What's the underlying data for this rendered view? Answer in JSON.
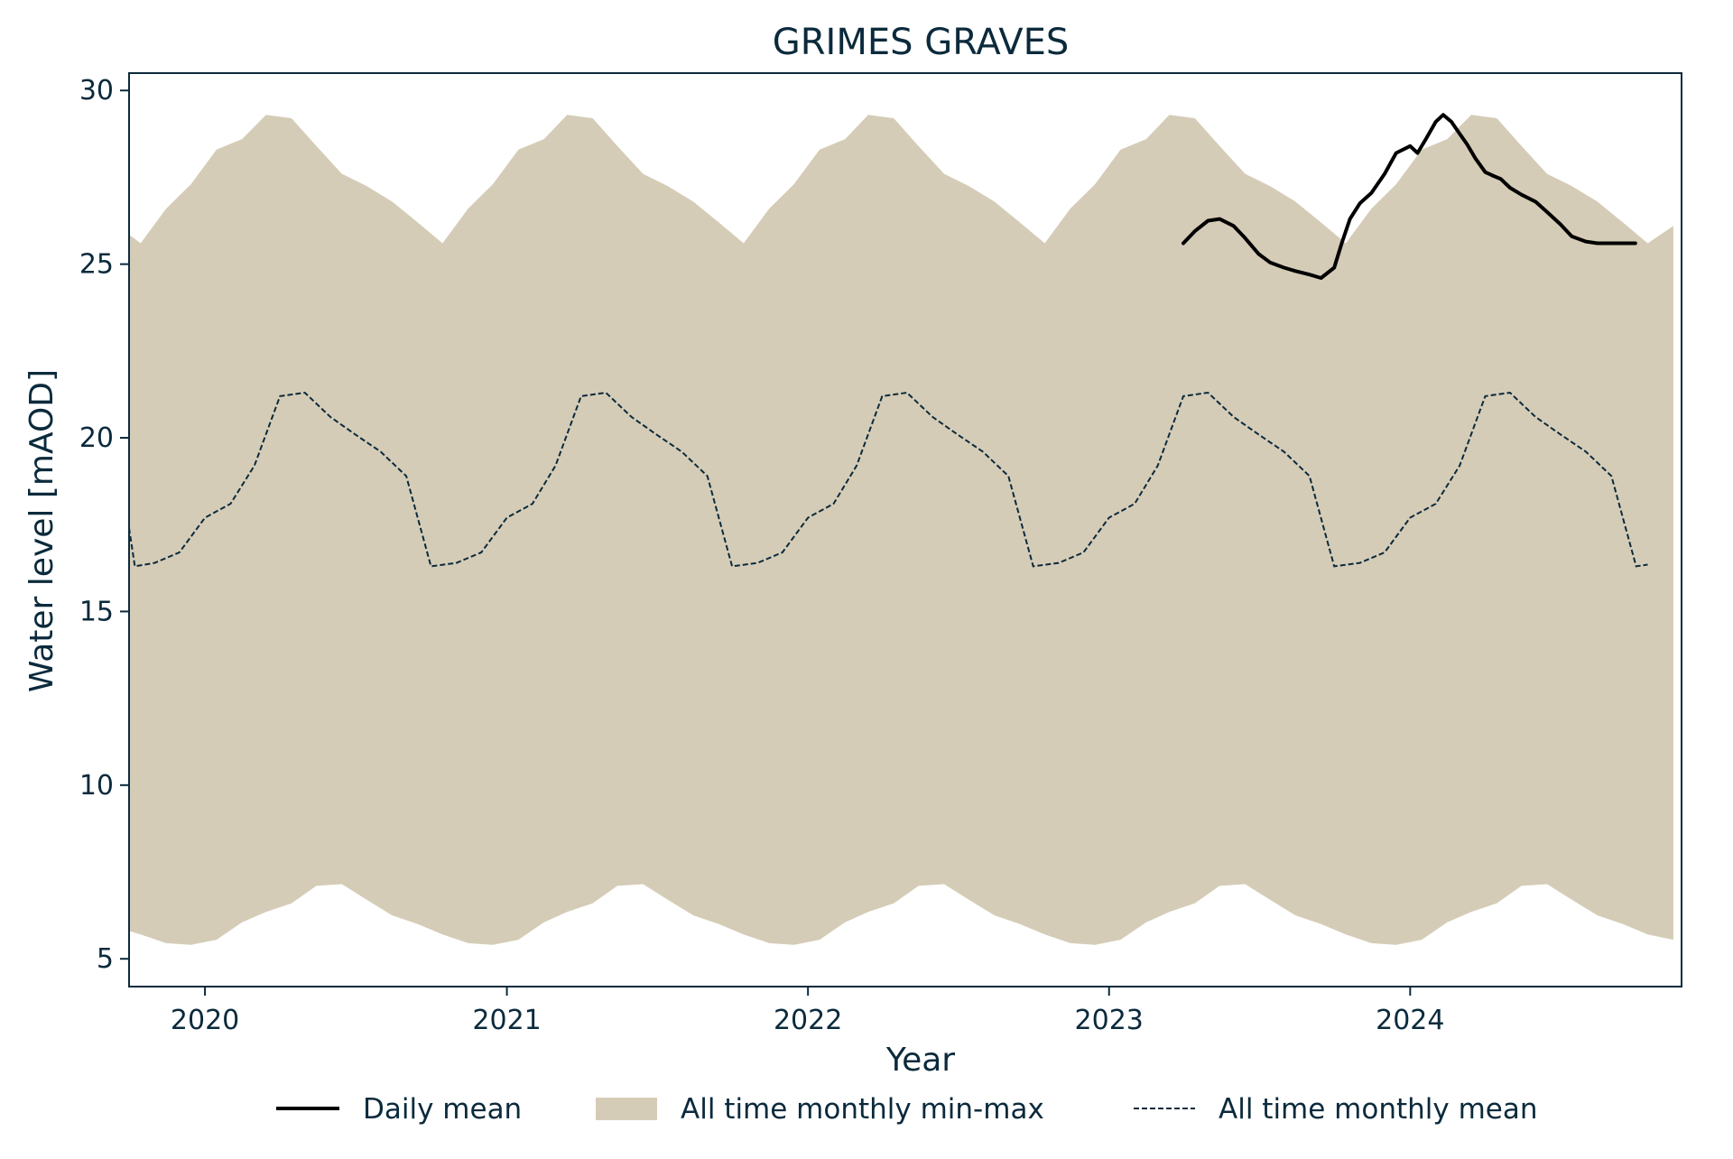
{
  "chart_data": {
    "type": "line",
    "title": "GRIMES GRAVES",
    "xlabel": "Year",
    "ylabel": "Water level [mAOD]",
    "xlim": [
      "2019-10-01",
      "2024-11-25"
    ],
    "ylim": [
      4.2,
      30.5
    ],
    "x_ticks": [
      {
        "date": "2020-01-01",
        "label": "2020"
      },
      {
        "date": "2021-01-01",
        "label": "2021"
      },
      {
        "date": "2022-01-01",
        "label": "2022"
      },
      {
        "date": "2023-01-01",
        "label": "2023"
      },
      {
        "date": "2024-01-01",
        "label": "2024"
      }
    ],
    "y_ticks": [
      5,
      10,
      15,
      20,
      25,
      30
    ],
    "grid": false,
    "legend_position": "bottom-center",
    "colors": {
      "daily_mean": "#000000",
      "band_fill": "#d5ccb7",
      "monthly_mean": "#0b2a3c",
      "text": "#0b2a3c"
    },
    "legend": [
      {
        "label": "Daily mean",
        "style": "solid-line"
      },
      {
        "label": "All time monthly min-max",
        "style": "filled-band"
      },
      {
        "label": "All time monthly mean",
        "style": "dashed-line"
      }
    ],
    "monthly_min_max": {
      "name": "All time monthly min-max",
      "x": [
        "2019-10-01",
        "2019-10-15",
        "2019-11-15",
        "2019-12-15",
        "2020-01-15",
        "2020-02-15",
        "2020-03-15",
        "2020-04-15",
        "2020-05-15",
        "2020-06-15",
        "2020-07-15",
        "2020-08-15",
        "2020-09-15",
        "2020-10-15",
        "2020-11-15",
        "2020-12-15",
        "2021-01-15",
        "2021-02-15",
        "2021-03-15",
        "2021-04-15",
        "2021-05-15",
        "2021-06-15",
        "2021-07-15",
        "2021-08-15",
        "2021-09-15",
        "2021-10-15",
        "2021-11-15",
        "2021-12-15",
        "2022-01-15",
        "2022-02-15",
        "2022-03-15",
        "2022-04-15",
        "2022-05-15",
        "2022-06-15",
        "2022-07-15",
        "2022-08-15",
        "2022-09-15",
        "2022-10-15",
        "2022-11-15",
        "2022-12-15",
        "2023-01-15",
        "2023-02-15",
        "2023-03-15",
        "2023-04-15",
        "2023-05-15",
        "2023-06-15",
        "2023-07-15",
        "2023-08-15",
        "2023-09-15",
        "2023-10-15",
        "2023-11-15",
        "2023-12-15",
        "2024-01-15",
        "2024-02-15",
        "2024-03-15",
        "2024-04-15",
        "2024-05-15",
        "2024-06-15",
        "2024-07-15",
        "2024-08-15",
        "2024-09-15",
        "2024-10-15",
        "2024-11-15"
      ],
      "min": [
        5.8,
        5.7,
        5.45,
        5.4,
        5.55,
        6.05,
        6.35,
        6.6,
        7.1,
        7.15,
        6.7,
        6.25,
        6.0,
        5.7,
        5.45,
        5.4,
        5.55,
        6.05,
        6.35,
        6.6,
        7.1,
        7.15,
        6.7,
        6.25,
        6.0,
        5.7,
        5.45,
        5.4,
        5.55,
        6.05,
        6.35,
        6.6,
        7.1,
        7.15,
        6.7,
        6.25,
        6.0,
        5.7,
        5.45,
        5.4,
        5.55,
        6.05,
        6.35,
        6.6,
        7.1,
        7.15,
        6.7,
        6.25,
        6.0,
        5.7,
        5.45,
        5.4,
        5.55,
        6.05,
        6.35,
        6.6,
        7.1,
        7.15,
        6.7,
        6.25,
        6.0,
        5.7,
        5.55
      ],
      "max": [
        25.85,
        25.6,
        26.6,
        27.3,
        28.3,
        28.6,
        29.3,
        29.2,
        28.4,
        27.6,
        27.25,
        26.8,
        26.2,
        25.6,
        26.6,
        27.3,
        28.3,
        28.6,
        29.3,
        29.2,
        28.4,
        27.6,
        27.25,
        26.8,
        26.2,
        25.6,
        26.6,
        27.3,
        28.3,
        28.6,
        29.3,
        29.2,
        28.4,
        27.6,
        27.25,
        26.8,
        26.2,
        25.6,
        26.6,
        27.3,
        28.3,
        28.6,
        29.3,
        29.2,
        28.4,
        27.6,
        27.25,
        26.8,
        26.2,
        25.6,
        26.6,
        27.3,
        28.3,
        28.6,
        29.3,
        29.2,
        28.4,
        27.6,
        27.25,
        26.8,
        26.2,
        25.6,
        26.1
      ]
    },
    "monthly_mean": {
      "name": "All time monthly mean",
      "x": [
        "2019-10-01",
        "2019-10-08",
        "2019-11-01",
        "2019-12-01",
        "2020-01-01",
        "2020-02-01",
        "2020-03-01",
        "2020-04-01",
        "2020-05-01",
        "2020-06-01",
        "2020-07-01",
        "2020-08-01",
        "2020-09-01",
        "2020-10-01",
        "2020-11-01",
        "2020-12-01",
        "2021-01-01",
        "2021-02-01",
        "2021-03-01",
        "2021-04-01",
        "2021-05-01",
        "2021-06-01",
        "2021-07-01",
        "2021-08-01",
        "2021-09-01",
        "2021-10-01",
        "2021-11-01",
        "2021-12-01",
        "2022-01-01",
        "2022-02-01",
        "2022-03-01",
        "2022-04-01",
        "2022-05-01",
        "2022-06-01",
        "2022-07-01",
        "2022-08-01",
        "2022-09-01",
        "2022-10-01",
        "2022-11-01",
        "2022-12-01",
        "2023-01-01",
        "2023-02-01",
        "2023-03-01",
        "2023-04-01",
        "2023-05-01",
        "2023-06-01",
        "2023-07-01",
        "2023-08-01",
        "2023-09-01",
        "2023-10-01",
        "2023-11-01",
        "2023-12-01",
        "2024-01-01",
        "2024-02-01",
        "2024-03-01",
        "2024-04-01",
        "2024-05-01",
        "2024-06-01",
        "2024-07-01",
        "2024-08-01",
        "2024-09-01",
        "2024-10-01",
        "2024-10-15"
      ],
      "values": [
        17.4,
        16.3,
        16.4,
        16.7,
        17.7,
        18.1,
        19.2,
        21.2,
        21.3,
        20.6,
        20.1,
        19.6,
        18.9,
        16.3,
        16.4,
        16.7,
        17.7,
        18.1,
        19.2,
        21.2,
        21.3,
        20.6,
        20.1,
        19.6,
        18.9,
        16.3,
        16.4,
        16.7,
        17.7,
        18.1,
        19.2,
        21.2,
        21.3,
        20.6,
        20.1,
        19.6,
        18.9,
        16.3,
        16.4,
        16.7,
        17.7,
        18.1,
        19.2,
        21.2,
        21.3,
        20.6,
        20.1,
        19.6,
        18.9,
        16.3,
        16.4,
        16.7,
        17.7,
        18.1,
        19.2,
        21.2,
        21.3,
        20.6,
        20.1,
        19.6,
        18.9,
        16.3,
        16.35
      ]
    },
    "daily_mean": {
      "name": "Daily mean",
      "x": [
        "2023-04-01",
        "2023-04-15",
        "2023-05-01",
        "2023-05-15",
        "2023-06-01",
        "2023-06-15",
        "2023-07-01",
        "2023-07-15",
        "2023-08-01",
        "2023-08-15",
        "2023-09-01",
        "2023-09-15",
        "2023-10-01",
        "2023-10-10",
        "2023-10-20",
        "2023-11-01",
        "2023-11-15",
        "2023-12-01",
        "2023-12-15",
        "2024-01-01",
        "2024-01-10",
        "2024-01-20",
        "2024-02-01",
        "2024-02-10",
        "2024-02-20",
        "2024-03-01",
        "2024-03-10",
        "2024-03-20",
        "2024-04-01",
        "2024-04-10",
        "2024-04-20",
        "2024-05-01",
        "2024-05-15",
        "2024-06-01",
        "2024-06-15",
        "2024-07-01",
        "2024-07-15",
        "2024-08-01",
        "2024-08-15",
        "2024-09-01",
        "2024-09-15",
        "2024-09-30"
      ],
      "values": [
        25.6,
        25.95,
        26.25,
        26.3,
        26.1,
        25.75,
        25.3,
        25.05,
        24.9,
        24.8,
        24.7,
        24.6,
        24.9,
        25.6,
        26.3,
        26.75,
        27.05,
        27.6,
        28.2,
        28.4,
        28.2,
        28.6,
        29.1,
        29.3,
        29.1,
        28.75,
        28.45,
        28.05,
        27.65,
        27.55,
        27.45,
        27.2,
        27.0,
        26.8,
        26.5,
        26.15,
        25.8,
        25.65,
        25.6,
        25.6,
        25.6,
        25.6
      ]
    }
  }
}
